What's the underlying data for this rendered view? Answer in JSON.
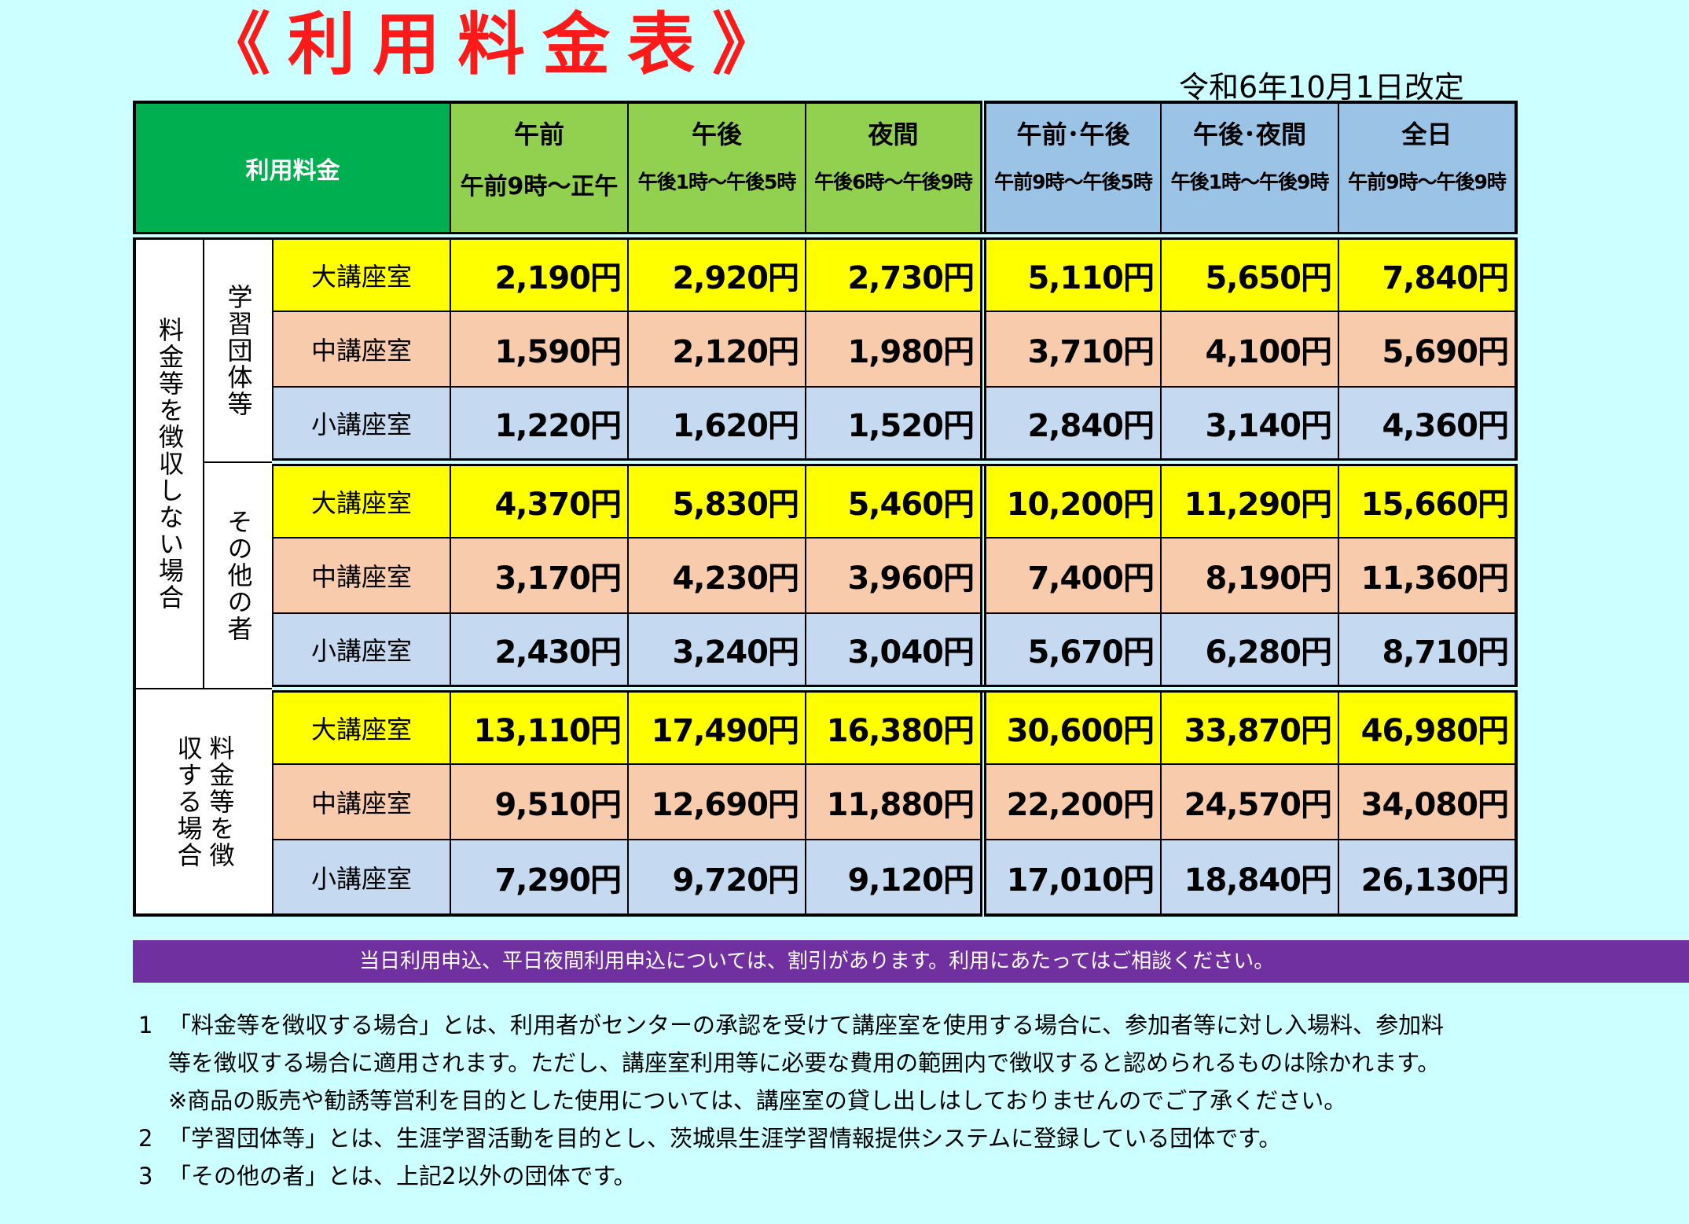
{
  "title": "《利用料金表》",
  "revised": "令和6年10月1日改定",
  "table": {
    "header_label": "利用料金",
    "columns": [
      {
        "name": "午前",
        "time": "午前9時～正午"
      },
      {
        "name": "午後",
        "time": "午後1時～午後5時"
      },
      {
        "name": "夜間",
        "time": "午後6時～午後9時"
      },
      {
        "name": "午前･午後",
        "time": "午前9時～午後5時"
      },
      {
        "name": "午後･夜間",
        "time": "午後1時～午後9時"
      },
      {
        "name": "全日",
        "time": "午前9時～午後9時"
      }
    ],
    "groups": {
      "no_fee": "料金等を徴収しない場合",
      "learning_group": "学習団体等",
      "others": "その他の者",
      "with_fee": "料金等を徴収する場合"
    },
    "rooms": {
      "large": "大講座室",
      "medium": "中講座室",
      "small": "小講座室"
    },
    "rows": [
      {
        "room": "大講座室",
        "values": [
          "2,190円",
          "2,920円",
          "2,730円",
          "5,110円",
          "5,650円",
          "7,840円"
        ]
      },
      {
        "room": "中講座室",
        "values": [
          "1,590円",
          "2,120円",
          "1,980円",
          "3,710円",
          "4,100円",
          "5,690円"
        ]
      },
      {
        "room": "小講座室",
        "values": [
          "1,220円",
          "1,620円",
          "1,520円",
          "2,840円",
          "3,140円",
          "4,360円"
        ]
      },
      {
        "room": "大講座室",
        "values": [
          "4,370円",
          "5,830円",
          "5,460円",
          "10,200円",
          "11,290円",
          "15,660円"
        ]
      },
      {
        "room": "中講座室",
        "values": [
          "3,170円",
          "4,230円",
          "3,960円",
          "7,400円",
          "8,190円",
          "11,360円"
        ]
      },
      {
        "room": "小講座室",
        "values": [
          "2,430円",
          "3,240円",
          "3,040円",
          "5,670円",
          "6,280円",
          "8,710円"
        ]
      },
      {
        "room": "大講座室",
        "values": [
          "13,110円",
          "17,490円",
          "16,380円",
          "30,600円",
          "33,870円",
          "46,980円"
        ]
      },
      {
        "room": "中講座室",
        "values": [
          "9,510円",
          "12,690円",
          "11,880円",
          "22,200円",
          "24,570円",
          "34,080円"
        ]
      },
      {
        "room": "小講座室",
        "values": [
          "7,290円",
          "9,720円",
          "9,120円",
          "17,010円",
          "18,840円",
          "26,130円"
        ]
      }
    ]
  },
  "notice": "当日利用申込、平日夜間利用申込については、割引があります。利用にあたってはご相談ください。",
  "notes": [
    {
      "num": "1",
      "lines": [
        "「料金等を徴収する場合」とは、利用者がセンターの承認を受けて講座室を使用する場合に、参加者等に対し入場料、参加料",
        "等を徴収する場合に適用されます。ただし、講座室利用等に必要な費用の範囲内で徴収すると認められるものは除かれます。",
        "※商品の販売や勧誘等営利を目的とした使用については、講座室の貸し出しはしておりませんのでご了承ください。"
      ]
    },
    {
      "num": "2",
      "lines": [
        "「学習団体等」とは、生涯学習活動を目的とし、茨城県生涯学習情報提供システムに登録している団体です。"
      ]
    },
    {
      "num": "3",
      "lines": [
        "「その他の者」とは、上記2以外の団体です。"
      ]
    }
  ]
}
